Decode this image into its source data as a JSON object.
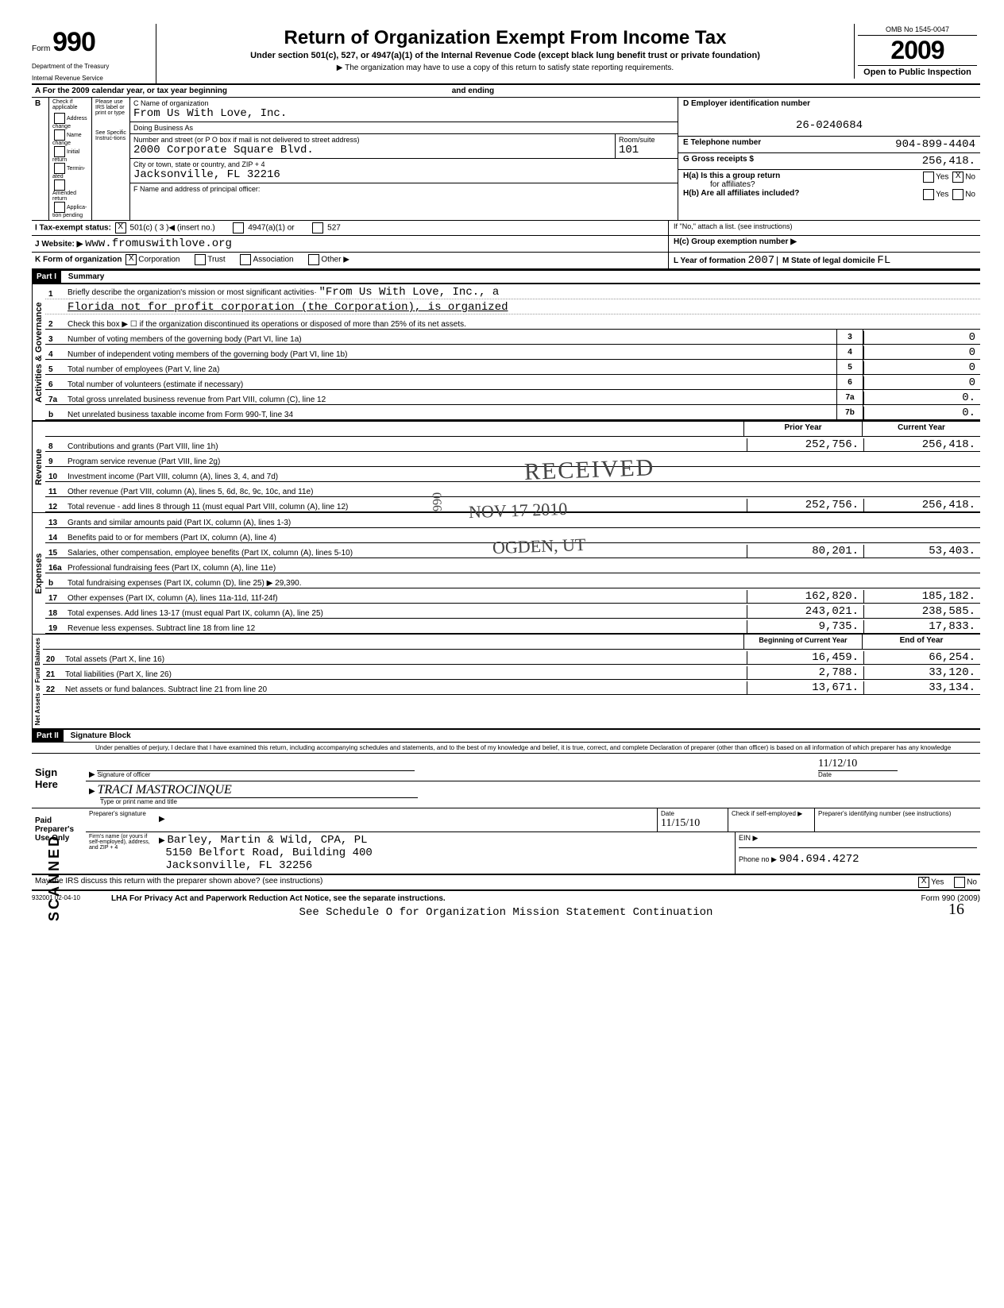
{
  "header": {
    "form": "Form",
    "number": "990",
    "dept1": "Department of the Treasury",
    "dept2": "Internal Revenue Service",
    "title": "Return of Organization Exempt From Income Tax",
    "subtitle": "Under section 501(c), 527, or 4947(a)(1) of the Internal Revenue Code (except black lung benefit trust or private foundation)",
    "note": "▶ The organization may have to use a copy of this return to satisfy state reporting requirements.",
    "omb": "OMB No 1545-0047",
    "year": "2009",
    "open": "Open to Public Inspection"
  },
  "topline": {
    "a": "A  For the 2009 calendar year, or tax year beginning",
    "ending": "and ending"
  },
  "blockB": {
    "hdr": "B",
    "check": "Check if applicable",
    "please": "Please use IRS label or print or type",
    "see": "See Specific Instruc-tions",
    "opts": [
      "Address change",
      "Name change",
      "Initial return",
      "Termin-ated",
      "Amended return",
      "Applica-tion pending"
    ]
  },
  "blockC": {
    "nameLbl": "C Name of organization",
    "name": "From Us With Love, Inc.",
    "dba": "Doing Business As",
    "streetLbl": "Number and street (or P O  box if mail is not delivered to street address)",
    "street": "2000 Corporate Square Blvd.",
    "roomLbl": "Room/suite",
    "room": "101",
    "cityLbl": "City or town, state or country, and ZIP + 4",
    "city": "Jacksonville, FL   32216",
    "fLbl": "F Name and address of principal officer:"
  },
  "blockD": {
    "lbl": "D  Employer identification number",
    "val": "26-0240684"
  },
  "blockE": {
    "lbl": "E  Telephone number",
    "val": "904-899-4404"
  },
  "blockG": {
    "lbl": "G  Gross receipts $",
    "val": "256,418."
  },
  "blockH": {
    "a": "H(a) Is this a group return",
    "a2": "for affiliates?",
    "b": "H(b) Are all affiliates included?",
    "note": "If \"No,\" attach a list. (see instructions)",
    "c": "H(c) Group exemption number ▶",
    "yes": "Yes",
    "no": "No"
  },
  "lineI": "I   Tax-exempt status:",
  "i501c": "501(c) ( 3        )◀  (insert no.)",
  "i4947": "4947(a)(1) or",
  "i527": "527",
  "lineJ": "J  Website: ▶",
  "website": "www.fromuswithlove.org",
  "lineK": "K Form of organization",
  "kCorp": "Corporation",
  "kTrust": "Trust",
  "kAssoc": "Association",
  "kOther": "Other ▶",
  "lineL": "L Year of formation",
  "lVal": "2007",
  "lineM": "M State of legal domicile",
  "mVal": "FL",
  "part1": "Part I",
  "part1t": "Summary",
  "activities": {
    "label": "Activities & Governance",
    "lines": [
      {
        "n": "1",
        "t": "Briefly describe the organization's mission or most significant activities·",
        "v": "\"From Us With Love, Inc., a"
      },
      {
        "n": "",
        "t": "",
        "v": "Florida not for profit corporation (the Corporation), is organized"
      },
      {
        "n": "2",
        "t": "Check this box  ▶  ☐  if the organization discontinued its operations or disposed of more than 25% of its net assets."
      },
      {
        "n": "3",
        "t": "Number of voting members of the governing body (Part VI, line 1a)",
        "box": "3",
        "val": "0"
      },
      {
        "n": "4",
        "t": "Number of independent voting members of the governing body (Part VI, line 1b)",
        "box": "4",
        "val": "0"
      },
      {
        "n": "5",
        "t": "Total number of employees (Part V, line 2a)",
        "box": "5",
        "val": "0"
      },
      {
        "n": "6",
        "t": "Total number of volunteers (estimate if necessary)",
        "box": "6",
        "val": "0"
      },
      {
        "n": "7a",
        "t": "Total gross unrelated business revenue from Part VIII, column (C), line 12",
        "box": "7a",
        "val": "0."
      },
      {
        "n": "b",
        "t": "Net unrelated business taxable income from Form 990-T, line 34",
        "box": "7b",
        "val": "0."
      }
    ]
  },
  "cols": {
    "prior": "Prior Year",
    "current": "Current Year"
  },
  "revenue": {
    "label": "Revenue",
    "lines": [
      {
        "n": "8",
        "t": "Contributions and grants (Part VIII, line 1h)",
        "p": "252,756.",
        "c": "256,418."
      },
      {
        "n": "9",
        "t": "Program service revenue (Part VIII, line 2g)",
        "p": "",
        "c": ""
      },
      {
        "n": "10",
        "t": "Investment income (Part VIII, column (A), lines 3, 4, and 7d)",
        "p": "",
        "c": ""
      },
      {
        "n": "11",
        "t": "Other revenue (Part VIII, column (A), lines 5, 6d, 8c, 9c, 10c, and 11e)",
        "p": "",
        "c": ""
      },
      {
        "n": "12",
        "t": "Total revenue - add lines 8 through 11 (must equal Part VIII, column (A), line 12)",
        "p": "252,756.",
        "c": "256,418."
      }
    ]
  },
  "expenses": {
    "label": "Expenses",
    "lines": [
      {
        "n": "13",
        "t": "Grants and similar amounts paid (Part IX, column (A), lines 1-3)",
        "p": "",
        "c": ""
      },
      {
        "n": "14",
        "t": "Benefits paid to or for members (Part IX, column (A), line 4)",
        "p": "",
        "c": ""
      },
      {
        "n": "15",
        "t": "Salaries, other compensation, employee benefits (Part IX, column (A), lines 5-10)",
        "p": "80,201.",
        "c": "53,403."
      },
      {
        "n": "16a",
        "t": "Professional fundraising fees (Part IX, column (A), line 11e)",
        "p": "",
        "c": ""
      },
      {
        "n": "b",
        "t": "Total fundraising expenses (Part IX, column (D), line 25)     ▶          29,390.",
        "p": "",
        "c": "",
        "shade": true
      },
      {
        "n": "17",
        "t": "Other expenses (Part IX, column (A), lines 11a-11d, 11f-24f)",
        "p": "162,820.",
        "c": "185,182."
      },
      {
        "n": "18",
        "t": "Total expenses. Add lines 13-17 (must equal Part IX, column (A), line 25)",
        "p": "243,021.",
        "c": "238,585."
      },
      {
        "n": "19",
        "t": "Revenue less expenses. Subtract line 18 from line 12",
        "p": "9,735.",
        "c": "17,833."
      }
    ]
  },
  "cols2": {
    "begin": "Beginning of Current Year",
    "end": "End of Year"
  },
  "netassets": {
    "label": "Net Assets or Fund Balances",
    "lines": [
      {
        "n": "20",
        "t": "Total assets (Part X, line 16)",
        "p": "16,459.",
        "c": "66,254."
      },
      {
        "n": "21",
        "t": "Total liabilities (Part X, line 26)",
        "p": "2,788.",
        "c": "33,120."
      },
      {
        "n": "22",
        "t": "Net assets or fund balances. Subtract line 21 from line 20",
        "p": "13,671.",
        "c": "33,134."
      }
    ]
  },
  "part2": "Part II",
  "part2t": "Signature Block",
  "sigText": "Under penalties of perjury, I declare that I have examined this return, including accompanying schedules and statements, and to the best of my knowledge and belief, it is true, correct, and complete  Declaration of preparer (other than officer) is based on all information of which preparer has any knowledge",
  "signHere": "Sign Here",
  "sigOfficer": "Signature of officer",
  "sigDate": "Date",
  "sigName": "TRACI MASTROCINQUE",
  "sigDateVal": "11/12/10",
  "typeName": "Type or print name and title",
  "paid": "Paid Preparer's Use Only",
  "prepSig": "Preparer's signature",
  "firmLbl": "Firm's name (or yours if self-employed), address, and ZIP + 4",
  "firm": "Barley, Martin & Wild, CPA, PL",
  "addr1": "5150 Belfort Road, Building 400",
  "addr2": "Jacksonville, FL 32256",
  "dateLbl": "Date",
  "dateVal": "11/15/10",
  "selfEmp": "Check if self-employed ▶",
  "prepId": "Preparer's identifying number (see instructions)",
  "ein": "EIN ▶",
  "phone": "Phone no  ▶",
  "phoneVal": "904.694.4272",
  "discuss": "May the IRS discuss this return with the preparer shown above? (see instructions)",
  "yes": "Yes",
  "no": "No",
  "footer1": "932001 02-04-10",
  "footer2": "LHA  For Privacy Act and Paperwork Reduction Act Notice, see the separate instructions.",
  "footer3": "Form 990 (2009)",
  "footer4": "See Schedule O for Organization Mission Statement Continuation",
  "stamp1": "RECEIVED",
  "stamp2": "NOV 17 2010",
  "stamp3": "OGDEN, UT",
  "stamp4": "066",
  "scanned": "SCANNED",
  "pagenum": "16"
}
